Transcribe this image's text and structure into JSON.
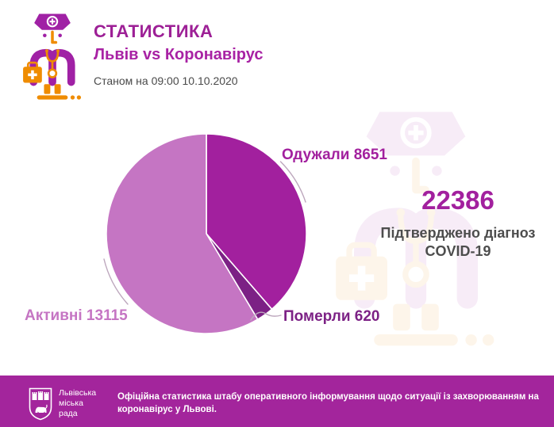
{
  "header": {
    "kicker": "СТАТИСТИКА",
    "title": "Львів vs Коронавірус",
    "timestamp": "Станом на 09:00 10.10.2020"
  },
  "summary": {
    "total": "22386",
    "caption": "Підтверджено діагноз COVID-19"
  },
  "chart_data": {
    "type": "pie",
    "title": "Львів vs Коронавірус — розподіл випадків COVID-19",
    "total": 22386,
    "start_angle_deg": 0,
    "direction": "clockwise",
    "legend_position": "around-pie",
    "slices": [
      {
        "key": "recovered",
        "label": "Одужали",
        "value": 8651,
        "color": "#a2209e",
        "label_text": "Одужали 8651"
      },
      {
        "key": "deceased",
        "label": "Померли",
        "value": 620,
        "color": "#7c2185",
        "label_text": "Померли 620"
      },
      {
        "key": "active",
        "label": "Активні",
        "value": 13115,
        "color": "#c575c3",
        "label_text": "Активні 13115"
      }
    ]
  },
  "footer": {
    "logo_text": "Львівська міська рада",
    "text": "Офіційна статистика штабу оперативного інформування щодо ситуації із захворюванням на коронавірус у Львові."
  },
  "colors": {
    "accent": "#a2209e",
    "kicker": "#9d2096",
    "title": "#a822a4",
    "text_gray": "#4a4a4a",
    "icon_purple": "#a021a5",
    "icon_orange": "#ef8c00",
    "footer_bg": "#a3259c",
    "leader_line": "#bda7bd"
  }
}
